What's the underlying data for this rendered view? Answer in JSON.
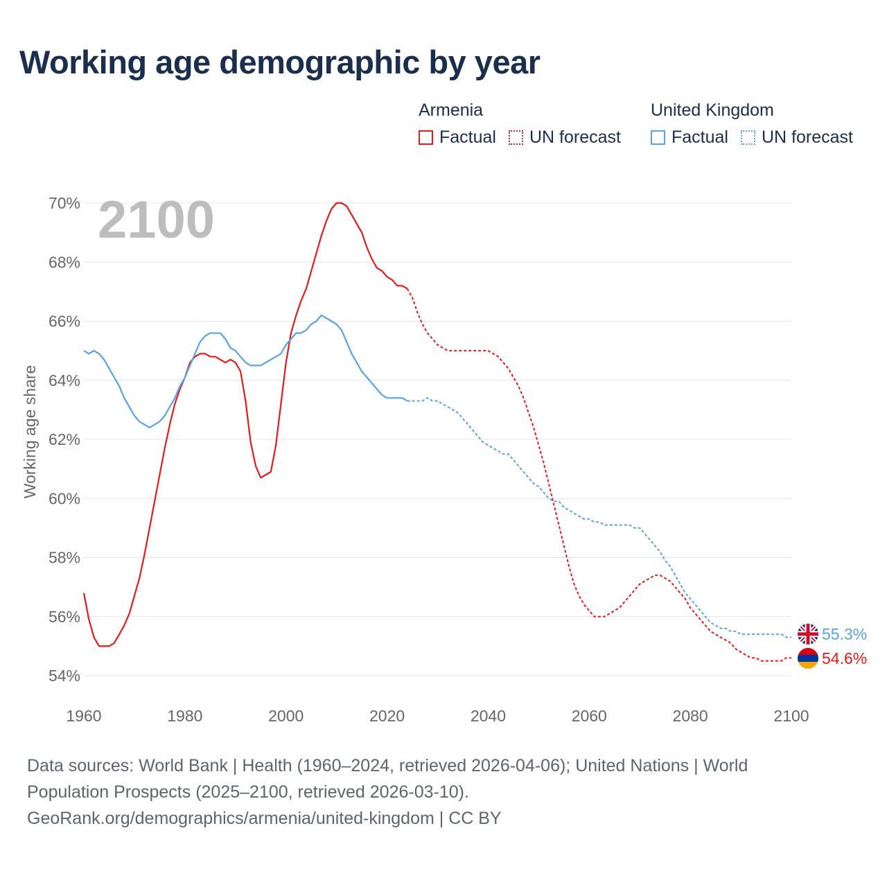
{
  "title": "Working age demographic by year",
  "legend": {
    "groups": [
      {
        "name": "Armenia",
        "color": "#e8191a",
        "items": [
          "Factual",
          "UN forecast"
        ]
      },
      {
        "name": "United Kingdom",
        "color": "#5aa3e3",
        "items": [
          "Factual",
          "UN forecast"
        ]
      }
    ]
  },
  "footer": {
    "line1": "Data sources: World Bank | Health (1960–2024, retrieved 2026-04-06); United Nations | World",
    "line2": "Population Prospects (2025–2100, retrieved 2026-03-10).",
    "line3": "GeoRank.org/demographics/armenia/united-kingdom | CC BY"
  },
  "chart_data": {
    "type": "line",
    "title": "Working age demographic by year",
    "year_watermark": "2100",
    "xlabel": "",
    "ylabel": "Working age share",
    "xlim": [
      1960,
      2100
    ],
    "ylim": [
      54,
      70
    ],
    "x_ticks": [
      "1960",
      "1980",
      "2000",
      "2020",
      "2040",
      "2060",
      "2080",
      "2100"
    ],
    "y_ticks": [
      "54%",
      "56%",
      "58%",
      "60%",
      "62%",
      "64%",
      "66%",
      "68%",
      "70%"
    ],
    "grid": true,
    "series": [
      {
        "name": "Armenia",
        "color": "#e8191a",
        "end_label": "54.6%",
        "flag": "armenia-flag",
        "factual": [
          [
            1960,
            56.8
          ],
          [
            1961,
            55.9
          ],
          [
            1962,
            55.3
          ],
          [
            1963,
            55.0
          ],
          [
            1964,
            55.0
          ],
          [
            1965,
            55.0
          ],
          [
            1966,
            55.1
          ],
          [
            1967,
            55.4
          ],
          [
            1968,
            55.7
          ],
          [
            1969,
            56.1
          ],
          [
            1970,
            56.7
          ],
          [
            1971,
            57.3
          ],
          [
            1972,
            58.1
          ],
          [
            1973,
            59.0
          ],
          [
            1974,
            59.9
          ],
          [
            1975,
            60.8
          ],
          [
            1976,
            61.7
          ],
          [
            1977,
            62.5
          ],
          [
            1978,
            63.2
          ],
          [
            1979,
            63.7
          ],
          [
            1980,
            64.1
          ],
          [
            1981,
            64.6
          ],
          [
            1982,
            64.8
          ],
          [
            1983,
            64.9
          ],
          [
            1984,
            64.9
          ],
          [
            1985,
            64.8
          ],
          [
            1986,
            64.8
          ],
          [
            1987,
            64.7
          ],
          [
            1988,
            64.6
          ],
          [
            1989,
            64.7
          ],
          [
            1990,
            64.6
          ],
          [
            1991,
            64.3
          ],
          [
            1992,
            63.3
          ],
          [
            1993,
            61.9
          ],
          [
            1994,
            61.1
          ],
          [
            1995,
            60.7
          ],
          [
            1996,
            60.8
          ],
          [
            1997,
            60.9
          ],
          [
            1998,
            61.8
          ],
          [
            1999,
            63.2
          ],
          [
            2000,
            64.6
          ],
          [
            2001,
            65.6
          ],
          [
            2002,
            66.2
          ],
          [
            2003,
            66.7
          ],
          [
            2004,
            67.1
          ],
          [
            2005,
            67.7
          ],
          [
            2006,
            68.3
          ],
          [
            2007,
            68.9
          ],
          [
            2008,
            69.4
          ],
          [
            2009,
            69.8
          ],
          [
            2010,
            70.0
          ],
          [
            2011,
            70.0
          ],
          [
            2012,
            69.9
          ],
          [
            2013,
            69.6
          ],
          [
            2014,
            69.3
          ],
          [
            2015,
            69.0
          ],
          [
            2016,
            68.5
          ],
          [
            2017,
            68.1
          ],
          [
            2018,
            67.8
          ],
          [
            2019,
            67.7
          ],
          [
            2020,
            67.5
          ],
          [
            2021,
            67.4
          ],
          [
            2022,
            67.2
          ],
          [
            2023,
            67.2
          ],
          [
            2024,
            67.1
          ]
        ],
        "forecast": [
          [
            2024,
            67.1
          ],
          [
            2025,
            66.8
          ],
          [
            2026,
            66.3
          ],
          [
            2027,
            65.9
          ],
          [
            2028,
            65.6
          ],
          [
            2029,
            65.4
          ],
          [
            2030,
            65.2
          ],
          [
            2031,
            65.1
          ],
          [
            2032,
            65.0
          ],
          [
            2034,
            65.0
          ],
          [
            2036,
            65.0
          ],
          [
            2038,
            65.0
          ],
          [
            2040,
            65.0
          ],
          [
            2041,
            64.9
          ],
          [
            2042,
            64.8
          ],
          [
            2043,
            64.6
          ],
          [
            2044,
            64.4
          ],
          [
            2045,
            64.1
          ],
          [
            2046,
            63.8
          ],
          [
            2047,
            63.4
          ],
          [
            2048,
            62.9
          ],
          [
            2049,
            62.4
          ],
          [
            2050,
            61.8
          ],
          [
            2051,
            61.2
          ],
          [
            2052,
            60.5
          ],
          [
            2053,
            59.8
          ],
          [
            2054,
            59.1
          ],
          [
            2055,
            58.4
          ],
          [
            2056,
            57.7
          ],
          [
            2057,
            57.1
          ],
          [
            2058,
            56.7
          ],
          [
            2059,
            56.4
          ],
          [
            2060,
            56.2
          ],
          [
            2061,
            56.0
          ],
          [
            2062,
            56.0
          ],
          [
            2063,
            56.0
          ],
          [
            2064,
            56.1
          ],
          [
            2065,
            56.2
          ],
          [
            2066,
            56.3
          ],
          [
            2067,
            56.5
          ],
          [
            2068,
            56.7
          ],
          [
            2069,
            56.9
          ],
          [
            2070,
            57.1
          ],
          [
            2071,
            57.2
          ],
          [
            2072,
            57.3
          ],
          [
            2073,
            57.4
          ],
          [
            2074,
            57.4
          ],
          [
            2075,
            57.3
          ],
          [
            2076,
            57.2
          ],
          [
            2077,
            57.0
          ],
          [
            2078,
            56.8
          ],
          [
            2079,
            56.6
          ],
          [
            2080,
            56.3
          ],
          [
            2081,
            56.1
          ],
          [
            2082,
            55.9
          ],
          [
            2083,
            55.7
          ],
          [
            2084,
            55.5
          ],
          [
            2085,
            55.4
          ],
          [
            2086,
            55.3
          ],
          [
            2087,
            55.2
          ],
          [
            2088,
            55.1
          ],
          [
            2089,
            54.9
          ],
          [
            2090,
            54.8
          ],
          [
            2091,
            54.7
          ],
          [
            2092,
            54.6
          ],
          [
            2093,
            54.6
          ],
          [
            2094,
            54.5
          ],
          [
            2095,
            54.5
          ],
          [
            2096,
            54.5
          ],
          [
            2097,
            54.5
          ],
          [
            2098,
            54.5
          ],
          [
            2099,
            54.6
          ],
          [
            2100,
            54.6
          ]
        ]
      },
      {
        "name": "United Kingdom",
        "color": "#5aa3e3",
        "end_label": "55.3%",
        "flag": "united-kingdom-flag",
        "factual": [
          [
            1960,
            65.0
          ],
          [
            1961,
            64.9
          ],
          [
            1962,
            65.0
          ],
          [
            1963,
            64.9
          ],
          [
            1964,
            64.7
          ],
          [
            1965,
            64.4
          ],
          [
            1966,
            64.1
          ],
          [
            1967,
            63.8
          ],
          [
            1968,
            63.4
          ],
          [
            1969,
            63.1
          ],
          [
            1970,
            62.8
          ],
          [
            1971,
            62.6
          ],
          [
            1972,
            62.5
          ],
          [
            1973,
            62.4
          ],
          [
            1974,
            62.5
          ],
          [
            1975,
            62.6
          ],
          [
            1976,
            62.8
          ],
          [
            1977,
            63.1
          ],
          [
            1978,
            63.4
          ],
          [
            1979,
            63.8
          ],
          [
            1980,
            64.1
          ],
          [
            1981,
            64.5
          ],
          [
            1982,
            64.9
          ],
          [
            1983,
            65.3
          ],
          [
            1984,
            65.5
          ],
          [
            1985,
            65.6
          ],
          [
            1986,
            65.6
          ],
          [
            1987,
            65.6
          ],
          [
            1988,
            65.4
          ],
          [
            1989,
            65.1
          ],
          [
            1990,
            65.0
          ],
          [
            1991,
            64.8
          ],
          [
            1992,
            64.6
          ],
          [
            1993,
            64.5
          ],
          [
            1994,
            64.5
          ],
          [
            1995,
            64.5
          ],
          [
            1996,
            64.6
          ],
          [
            1997,
            64.7
          ],
          [
            1998,
            64.8
          ],
          [
            1999,
            64.9
          ],
          [
            2000,
            65.2
          ],
          [
            2001,
            65.4
          ],
          [
            2002,
            65.6
          ],
          [
            2003,
            65.6
          ],
          [
            2004,
            65.7
          ],
          [
            2005,
            65.9
          ],
          [
            2006,
            66.0
          ],
          [
            2007,
            66.2
          ],
          [
            2008,
            66.1
          ],
          [
            2009,
            66.0
          ],
          [
            2010,
            65.9
          ],
          [
            2011,
            65.7
          ],
          [
            2012,
            65.3
          ],
          [
            2013,
            64.9
          ],
          [
            2014,
            64.6
          ],
          [
            2015,
            64.3
          ],
          [
            2016,
            64.1
          ],
          [
            2017,
            63.9
          ],
          [
            2018,
            63.7
          ],
          [
            2019,
            63.5
          ],
          [
            2020,
            63.4
          ],
          [
            2021,
            63.4
          ],
          [
            2022,
            63.4
          ],
          [
            2023,
            63.4
          ],
          [
            2024,
            63.3
          ]
        ],
        "forecast": [
          [
            2024,
            63.3
          ],
          [
            2025,
            63.3
          ],
          [
            2026,
            63.3
          ],
          [
            2027,
            63.3
          ],
          [
            2028,
            63.4
          ],
          [
            2029,
            63.3
          ],
          [
            2030,
            63.3
          ],
          [
            2031,
            63.2
          ],
          [
            2032,
            63.1
          ],
          [
            2033,
            63.0
          ],
          [
            2034,
            62.9
          ],
          [
            2035,
            62.7
          ],
          [
            2036,
            62.5
          ],
          [
            2037,
            62.3
          ],
          [
            2038,
            62.1
          ],
          [
            2039,
            61.9
          ],
          [
            2040,
            61.8
          ],
          [
            2041,
            61.7
          ],
          [
            2042,
            61.6
          ],
          [
            2043,
            61.5
          ],
          [
            2044,
            61.5
          ],
          [
            2045,
            61.3
          ],
          [
            2046,
            61.1
          ],
          [
            2047,
            60.9
          ],
          [
            2048,
            60.7
          ],
          [
            2049,
            60.5
          ],
          [
            2050,
            60.4
          ],
          [
            2051,
            60.2
          ],
          [
            2052,
            60.0
          ],
          [
            2053,
            59.9
          ],
          [
            2054,
            59.9
          ],
          [
            2055,
            59.7
          ],
          [
            2056,
            59.6
          ],
          [
            2057,
            59.5
          ],
          [
            2058,
            59.4
          ],
          [
            2059,
            59.3
          ],
          [
            2060,
            59.3
          ],
          [
            2061,
            59.2
          ],
          [
            2062,
            59.2
          ],
          [
            2063,
            59.1
          ],
          [
            2064,
            59.1
          ],
          [
            2065,
            59.1
          ],
          [
            2066,
            59.1
          ],
          [
            2067,
            59.1
          ],
          [
            2068,
            59.1
          ],
          [
            2069,
            59.0
          ],
          [
            2070,
            59.0
          ],
          [
            2071,
            58.8
          ],
          [
            2072,
            58.6
          ],
          [
            2073,
            58.4
          ],
          [
            2074,
            58.2
          ],
          [
            2075,
            57.9
          ],
          [
            2076,
            57.7
          ],
          [
            2077,
            57.4
          ],
          [
            2078,
            57.1
          ],
          [
            2079,
            56.8
          ],
          [
            2080,
            56.6
          ],
          [
            2081,
            56.4
          ],
          [
            2082,
            56.2
          ],
          [
            2083,
            56.0
          ],
          [
            2084,
            55.8
          ],
          [
            2085,
            55.7
          ],
          [
            2086,
            55.6
          ],
          [
            2087,
            55.6
          ],
          [
            2088,
            55.5
          ],
          [
            2089,
            55.5
          ],
          [
            2090,
            55.4
          ],
          [
            2092,
            55.4
          ],
          [
            2094,
            55.4
          ],
          [
            2096,
            55.4
          ],
          [
            2098,
            55.4
          ],
          [
            2099,
            55.3
          ],
          [
            2100,
            55.3
          ]
        ]
      }
    ]
  }
}
